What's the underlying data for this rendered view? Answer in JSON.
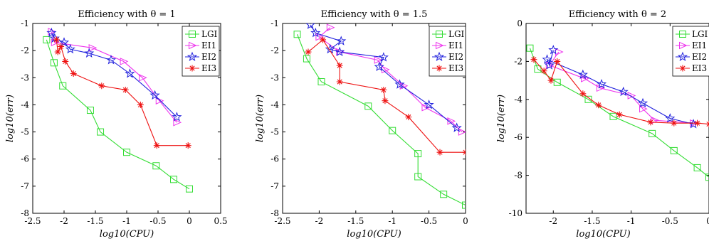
{
  "chart_data": [
    {
      "type": "line",
      "title": "Efficiency with θ = 1",
      "xlabel": "log10(CPU)",
      "ylabel": "log10(err)",
      "xlim": [
        -2.5,
        0.5
      ],
      "ylim": [
        -8,
        -1
      ],
      "xticks": [
        -2.5,
        -2,
        -1.5,
        -1,
        -0.5,
        0,
        0.5
      ],
      "yticks": [
        -8,
        -7,
        -6,
        -5,
        -4,
        -3,
        -2,
        -1
      ],
      "xtick_labels": [
        "-2.5",
        "-2",
        "-1.5",
        "-1",
        "-0.5",
        "0",
        "0.5"
      ],
      "ytick_labels": [
        "-8",
        "-7",
        "-6",
        "-5",
        "-4",
        "-3",
        "-2",
        "-1"
      ],
      "legend_position": "top-right",
      "series": [
        {
          "name": "LGI",
          "color": "#33dd33",
          "marker": "square",
          "x": [
            -2.28,
            -2.16,
            -2.02,
            -1.58,
            -1.42,
            -1.0,
            -0.53,
            -0.25,
            0.0
          ],
          "y": [
            -1.6,
            -2.45,
            -3.3,
            -4.2,
            -5.0,
            -5.75,
            -6.25,
            -6.75,
            -7.1
          ]
        },
        {
          "name": "EI1",
          "color": "#ee33ee",
          "marker": "triangle-right",
          "x": [
            -2.2,
            -2.15,
            -1.55,
            -1.05,
            -0.75,
            -0.48,
            -0.2
          ],
          "y": [
            -1.3,
            -1.7,
            -1.9,
            -2.4,
            -3.0,
            -3.85,
            -4.65
          ]
        },
        {
          "name": "EI2",
          "color": "#2222dd",
          "marker": "star",
          "x": [
            -2.2,
            -2.15,
            -2.0,
            -1.9,
            -1.6,
            -1.25,
            -0.95,
            -0.55,
            -0.2
          ],
          "y": [
            -1.35,
            -1.55,
            -1.7,
            -1.95,
            -2.1,
            -2.35,
            -2.85,
            -3.65,
            -4.45
          ]
        },
        {
          "name": "EI3",
          "color": "#ee1111",
          "marker": "asterisk",
          "x": [
            -2.12,
            -2.1,
            -2.05,
            -1.98,
            -1.85,
            -1.4,
            -1.02,
            -0.78,
            -0.52,
            -0.02
          ],
          "y": [
            -1.6,
            -2.05,
            -1.85,
            -2.4,
            -2.85,
            -3.3,
            -3.45,
            -4.0,
            -5.5,
            -5.5
          ]
        }
      ]
    },
    {
      "type": "line",
      "title": "Efficiency with θ = 1.5",
      "xlabel": "log10(CPU)",
      "ylabel": "log10(err)",
      "xlim": [
        -2.5,
        0
      ],
      "ylim": [
        -8,
        -1
      ],
      "xticks": [
        -2.5,
        -2,
        -1.5,
        -1,
        -0.5,
        0
      ],
      "yticks": [
        -8,
        -7,
        -6,
        -5,
        -4,
        -3,
        -2,
        -1
      ],
      "xtick_labels": [
        "-2.5",
        "-2",
        "-1.5",
        "-1",
        "-0.5",
        "0"
      ],
      "ytick_labels": [
        "-8",
        "-7",
        "-6",
        "-5",
        "-4",
        "-3",
        "-2",
        "-1"
      ],
      "legend_position": "top-right",
      "series": [
        {
          "name": "LGI",
          "color": "#33dd33",
          "marker": "square",
          "x": [
            -2.3,
            -2.17,
            -1.97,
            -1.33,
            -1.0,
            -0.65,
            -0.65,
            -0.3,
            0.0
          ],
          "y": [
            -1.4,
            -2.3,
            -3.15,
            -4.05,
            -4.95,
            -5.8,
            -6.65,
            -7.3,
            -7.7
          ]
        },
        {
          "name": "EI1",
          "color": "#ee33ee",
          "marker": "triangle-right",
          "x": [
            -1.85,
            -2.0,
            -1.72,
            -1.2,
            -1.1,
            -0.85,
            -0.55,
            -0.2,
            -0.05
          ],
          "y": [
            -1.15,
            -1.5,
            -2.05,
            -2.35,
            -2.7,
            -3.3,
            -4.1,
            -4.6,
            -5.0
          ]
        },
        {
          "name": "EI2",
          "color": "#2222dd",
          "marker": "star",
          "x": [
            -2.12,
            -2.05,
            -1.7,
            -1.85,
            -1.72,
            -1.12,
            -1.18,
            -0.9,
            -0.5,
            -0.12
          ],
          "y": [
            -1.05,
            -1.35,
            -1.65,
            -1.95,
            -2.05,
            -2.25,
            -2.6,
            -3.25,
            -4.0,
            -4.85
          ]
        },
        {
          "name": "EI3",
          "color": "#ee1111",
          "marker": "asterisk",
          "x": [
            -2.15,
            -1.95,
            -1.72,
            -1.72,
            -1.12,
            -1.1,
            -0.78,
            -0.35,
            0.0
          ],
          "y": [
            -2.05,
            -1.6,
            -2.55,
            -3.15,
            -3.45,
            -3.85,
            -4.45,
            -5.75,
            -5.75
          ]
        }
      ]
    },
    {
      "type": "line",
      "title": "Efficiency with θ = 2",
      "xlabel": "log10(CPU)",
      "ylabel": "log10(err)",
      "xlim": [
        -2.35,
        0
      ],
      "ylim": [
        -10,
        0
      ],
      "xticks": [
        -2,
        -1.5,
        -1,
        -0.5,
        0
      ],
      "yticks": [
        -10,
        -8,
        -6,
        -4,
        -2,
        0
      ],
      "xtick_labels": [
        "-2",
        "-1.5",
        "-1",
        "-0.5",
        "0"
      ],
      "ytick_labels": [
        "-10",
        "-8",
        "-6",
        "-4",
        "-2",
        "0"
      ],
      "legend_position": "top-right",
      "series": [
        {
          "name": "LGI",
          "color": "#33dd33",
          "marker": "square",
          "x": [
            -2.3,
            -2.2,
            -1.95,
            -1.55,
            -1.23,
            -0.73,
            -0.45,
            -0.15,
            0.0
          ],
          "y": [
            -1.3,
            -2.4,
            -3.1,
            -4.0,
            -4.9,
            -5.8,
            -6.7,
            -7.6,
            -8.1
          ]
        },
        {
          "name": "EI1",
          "color": "#ee33ee",
          "marker": "triangle-right",
          "x": [
            -1.93,
            -2.05,
            -1.6,
            -1.4,
            -1.0,
            -0.85,
            -0.7,
            -0.2
          ],
          "y": [
            -1.5,
            -2.2,
            -2.9,
            -3.4,
            -3.8,
            -4.5,
            -5.1,
            -5.25
          ]
        },
        {
          "name": "EI2",
          "color": "#2222dd",
          "marker": "star",
          "x": [
            -2.0,
            -2.05,
            -2.08,
            -1.62,
            -1.38,
            -1.1,
            -0.85,
            -0.5,
            -0.2
          ],
          "y": [
            -1.4,
            -2.2,
            -1.9,
            -2.7,
            -3.2,
            -3.6,
            -4.2,
            -5.0,
            -5.3
          ]
        },
        {
          "name": "EI3",
          "color": "#ee1111",
          "marker": "asterisk",
          "x": [
            -2.25,
            -2.12,
            -2.03,
            -1.95,
            -1.62,
            -1.42,
            -1.15,
            -0.75,
            -0.45,
            -0.15,
            0.0
          ],
          "y": [
            -1.9,
            -2.5,
            -3.0,
            -2.0,
            -3.7,
            -4.3,
            -4.8,
            -5.2,
            -5.25,
            -5.25,
            -5.3
          ]
        }
      ]
    }
  ]
}
